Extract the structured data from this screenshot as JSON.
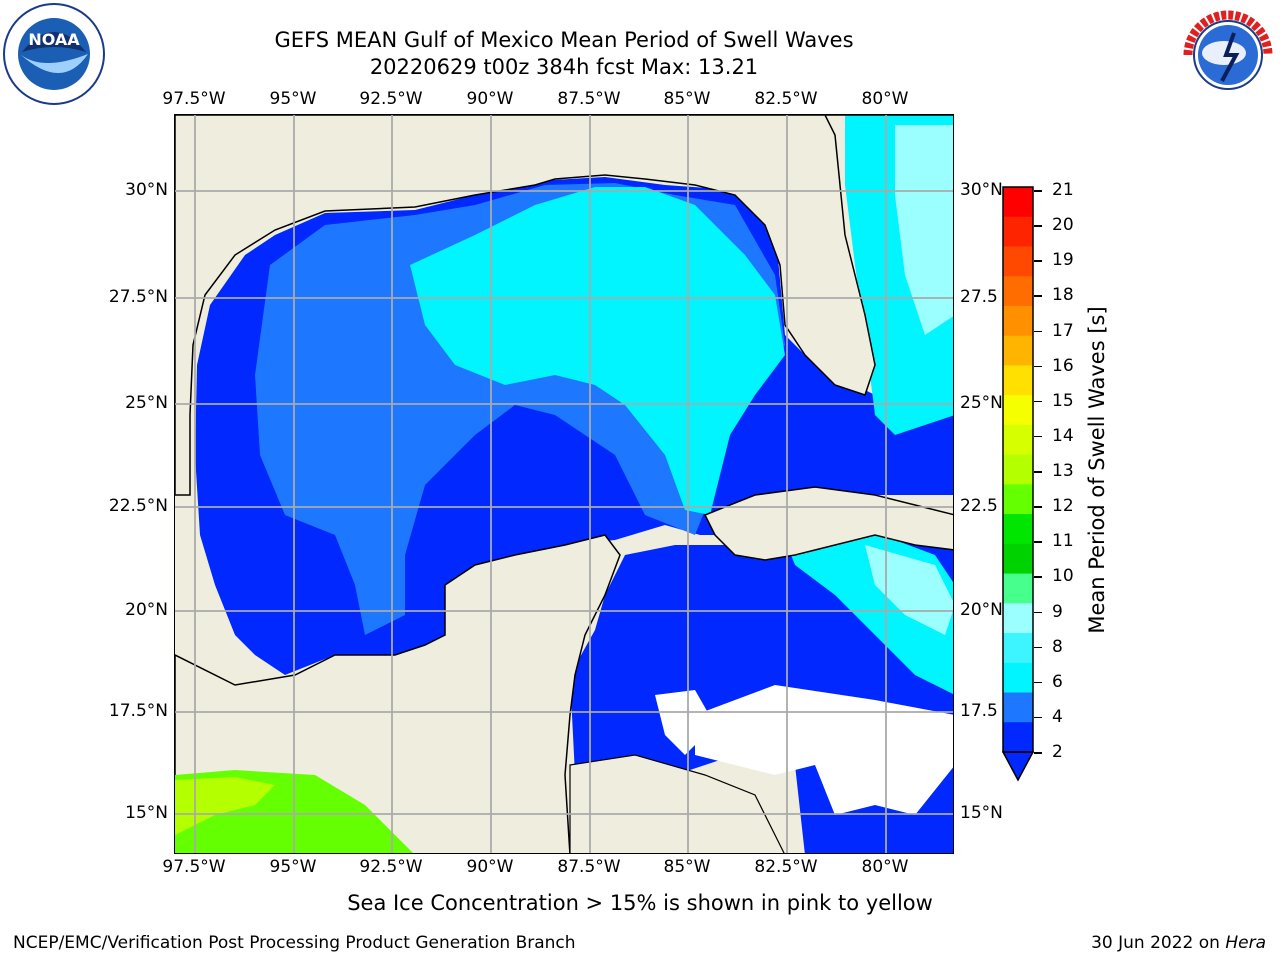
{
  "header": {
    "title_line1": "GEFS MEAN Gulf of Mexico Mean Period of Swell Waves",
    "title_line2": "20220629 t00z 384h fcst   Max: 13.21"
  },
  "logos": {
    "left": "NOAA",
    "right": "NATIONAL WEATHER SERVICE"
  },
  "map": {
    "lon_labels": [
      "97.5°W",
      "95°W",
      "92.5°W",
      "90°W",
      "87.5°W",
      "85°W",
      "82.5°W",
      "80°W"
    ],
    "lat_labels_left": [
      "30°N",
      "27.5°N",
      "25°N",
      "22.5°N",
      "20°N",
      "17.5°N",
      "15°N"
    ],
    "lat_labels_right": [
      "30°N",
      "27.5",
      "25°N",
      "22.5",
      "20°N",
      "17.5",
      "15°N"
    ],
    "lon_range": [
      -98,
      -78.3
    ],
    "lat_range": [
      14.1,
      31.7
    ],
    "colors": {
      "land": "#efedde",
      "band_2_4": "#0028ff",
      "band_4_6": "#1e78ff",
      "band_6_8": "#00f5ff",
      "band_8_9": "#9cffff",
      "band_10_12": "#64ff00",
      "band_12_13": "#b4ff00",
      "no_data": "#ffffff"
    }
  },
  "colorbar": {
    "title": "Mean Period of Swell Waves [s]",
    "labels": [
      "21",
      "20",
      "19",
      "18",
      "17",
      "16",
      "15",
      "14",
      "13",
      "12",
      "11",
      "10",
      "9",
      "8",
      "6",
      "4",
      "2"
    ],
    "colors": [
      "#ff0000",
      "#ff2400",
      "#ff4800",
      "#ff6c00",
      "#ff9000",
      "#ffb400",
      "#ffe000",
      "#f5ff00",
      "#d6ff00",
      "#b4ff00",
      "#64ff00",
      "#00e600",
      "#00d200",
      "#46ff8c",
      "#9cffff",
      "#3cf5ff",
      "#00f5ff",
      "#1e78ff",
      "#0028ff"
    ]
  },
  "footer": {
    "ice_note": "Sea Ice Concentration > 15% is shown in pink to yellow",
    "left": "NCEP/EMC/Verification Post Processing Product Generation Branch",
    "right_date": "30 Jun 2022 on ",
    "right_machine": "Hera"
  }
}
